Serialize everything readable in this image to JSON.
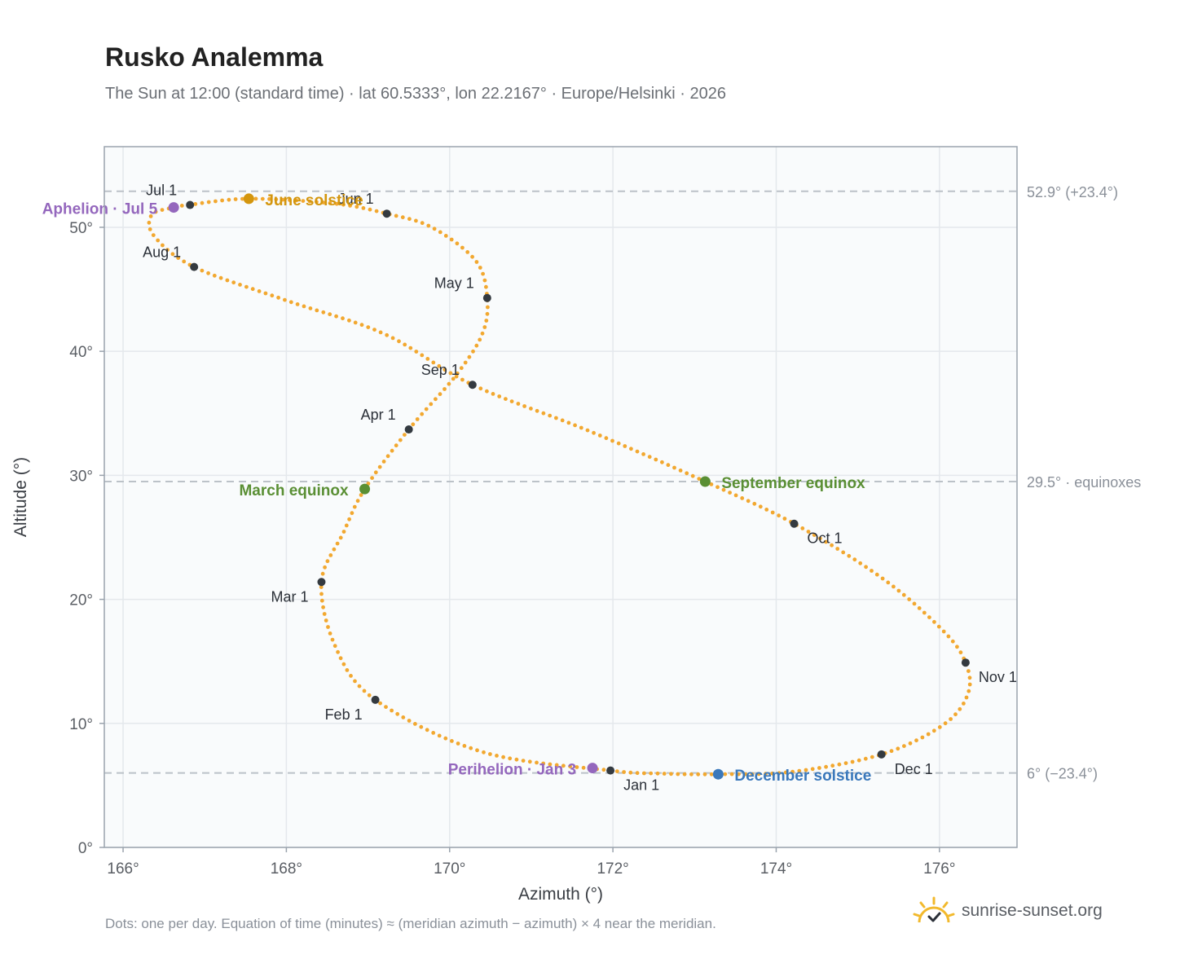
{
  "title": "Rusko Analemma",
  "subtitle": "The Sun at 12:00 (standard time) · lat 60.5333°, lon 22.2167° · Europe/Helsinki · 2026",
  "footnote": "Dots: one per day. Equation of time (minutes) ≈ (meridian azimuth − azimuth) × 4 near the meridian.",
  "brand": {
    "name": "sunrise-sunset.org",
    "logo_icon": "sun-check-icon"
  },
  "colors": {
    "curve": "#f2a830",
    "month_dot": "#343a40",
    "equinox": "#5a8f34",
    "june_solstice": "#d4960e",
    "december_solstice": "#3a78bb",
    "apsis": "#9467bd",
    "reference_line": "#bcc2c8",
    "plot_background": "#f9fbfc",
    "grid": "#e4e8ec"
  },
  "chart_data": {
    "type": "scatter",
    "xlabel": "Azimuth (°)",
    "ylabel": "Altitude (°)",
    "xlim": [
      165.77,
      176.95
    ],
    "ylim": [
      0,
      56.5
    ],
    "xticks": [
      166,
      168,
      170,
      172,
      174,
      176
    ],
    "yticks": [
      0,
      10,
      20,
      30,
      40,
      50
    ],
    "grid": true,
    "path_points": [
      {
        "x": 171.97,
        "y": 6.2
      },
      {
        "x": 170.4,
        "y": 7.7
      },
      {
        "x": 169.09,
        "y": 11.9
      },
      {
        "x": 168.6,
        "y": 16.2
      },
      {
        "x": 168.43,
        "y": 21.4
      },
      {
        "x": 168.7,
        "y": 25.4
      },
      {
        "x": 168.96,
        "y": 28.9
      },
      {
        "x": 169.5,
        "y": 33.7
      },
      {
        "x": 170.07,
        "y": 38.0
      },
      {
        "x": 170.4,
        "y": 41.4
      },
      {
        "x": 170.46,
        "y": 44.3
      },
      {
        "x": 170.32,
        "y": 47.3
      },
      {
        "x": 169.78,
        "y": 50.0
      },
      {
        "x": 169.23,
        "y": 51.1
      },
      {
        "x": 168.6,
        "y": 51.9
      },
      {
        "x": 167.54,
        "y": 52.3
      },
      {
        "x": 166.8,
        "y": 51.8
      },
      {
        "x": 166.62,
        "y": 51.6
      },
      {
        "x": 166.35,
        "y": 51.0
      },
      {
        "x": 166.38,
        "y": 49.3
      },
      {
        "x": 166.87,
        "y": 46.8
      },
      {
        "x": 168.0,
        "y": 44.1
      },
      {
        "x": 169.2,
        "y": 41.4
      },
      {
        "x": 170.28,
        "y": 37.3
      },
      {
        "x": 171.7,
        "y": 33.6
      },
      {
        "x": 173.13,
        "y": 29.5
      },
      {
        "x": 174.22,
        "y": 26.1
      },
      {
        "x": 175.3,
        "y": 21.7
      },
      {
        "x": 176.04,
        "y": 17.5
      },
      {
        "x": 176.32,
        "y": 14.9
      },
      {
        "x": 176.35,
        "y": 12.4
      },
      {
        "x": 176.05,
        "y": 9.9
      },
      {
        "x": 175.29,
        "y": 7.5
      },
      {
        "x": 174.2,
        "y": 6.1
      },
      {
        "x": 173.29,
        "y": 5.9
      },
      {
        "x": 172.6,
        "y": 5.95
      },
      {
        "x": 171.97,
        "y": 6.2
      }
    ],
    "dot_count": 365,
    "month_markers": [
      {
        "label": "Jan 1",
        "x": 171.97,
        "y": 6.2,
        "anchor": "start",
        "dx": 16,
        "dy": 24
      },
      {
        "label": "Feb 1",
        "x": 169.09,
        "y": 11.9,
        "anchor": "end",
        "dx": -16,
        "dy": 24
      },
      {
        "label": "Mar 1",
        "x": 168.43,
        "y": 21.4,
        "anchor": "end",
        "dx": -16,
        "dy": 24
      },
      {
        "label": "Apr 1",
        "x": 169.5,
        "y": 33.7,
        "anchor": "end",
        "dx": -16,
        "dy": -12
      },
      {
        "label": "May 1",
        "x": 170.46,
        "y": 44.3,
        "anchor": "end",
        "dx": -16,
        "dy": -12
      },
      {
        "label": "Jun 1",
        "x": 169.23,
        "y": 51.1,
        "anchor": "end",
        "dx": -16,
        "dy": -12
      },
      {
        "label": "Jul 1",
        "x": 166.82,
        "y": 51.8,
        "anchor": "end",
        "dx": -16,
        "dy": -12
      },
      {
        "label": "Aug 1",
        "x": 166.87,
        "y": 46.8,
        "anchor": "end",
        "dx": -16,
        "dy": -12
      },
      {
        "label": "Sep 1",
        "x": 170.28,
        "y": 37.3,
        "anchor": "end",
        "dx": -16,
        "dy": -12
      },
      {
        "label": "Oct 1",
        "x": 174.22,
        "y": 26.1,
        "anchor": "start",
        "dx": 16,
        "dy": 24
      },
      {
        "label": "Nov 1",
        "x": 176.32,
        "y": 14.9,
        "anchor": "start",
        "dx": 16,
        "dy": 24
      },
      {
        "label": "Dec 1",
        "x": 175.29,
        "y": 7.5,
        "anchor": "start",
        "dx": 16,
        "dy": 24
      }
    ],
    "events": [
      {
        "label": "March equinox",
        "x": 168.96,
        "y": 28.9,
        "color": "#5a8f34",
        "anchor": "end",
        "dx": -20,
        "dy": 8
      },
      {
        "label": "June solstice",
        "x": 167.54,
        "y": 52.3,
        "color": "#d4960e",
        "anchor": "start",
        "dx": 20,
        "dy": 8
      },
      {
        "label": "September equinox",
        "x": 173.13,
        "y": 29.5,
        "color": "#5a8f34",
        "anchor": "start",
        "dx": 20,
        "dy": 8
      },
      {
        "label": "December solstice",
        "x": 173.29,
        "y": 5.9,
        "color": "#3a78bb",
        "anchor": "start",
        "dx": 20,
        "dy": 8
      },
      {
        "label": "Aphelion · Jul 5",
        "x": 166.62,
        "y": 51.6,
        "color": "#9467bd",
        "anchor": "end",
        "dx": -20,
        "dy": 8
      },
      {
        "label": "Perihelion · Jan 3",
        "x": 171.75,
        "y": 6.4,
        "color": "#9467bd",
        "anchor": "end",
        "dx": -20,
        "dy": 8
      }
    ],
    "reference_lines": [
      {
        "y": 52.9,
        "label": "52.9° (+23.4°)"
      },
      {
        "y": 29.5,
        "label": "29.5° · equinoxes"
      },
      {
        "y": 6.0,
        "label": "6° (−23.4°)"
      }
    ]
  }
}
